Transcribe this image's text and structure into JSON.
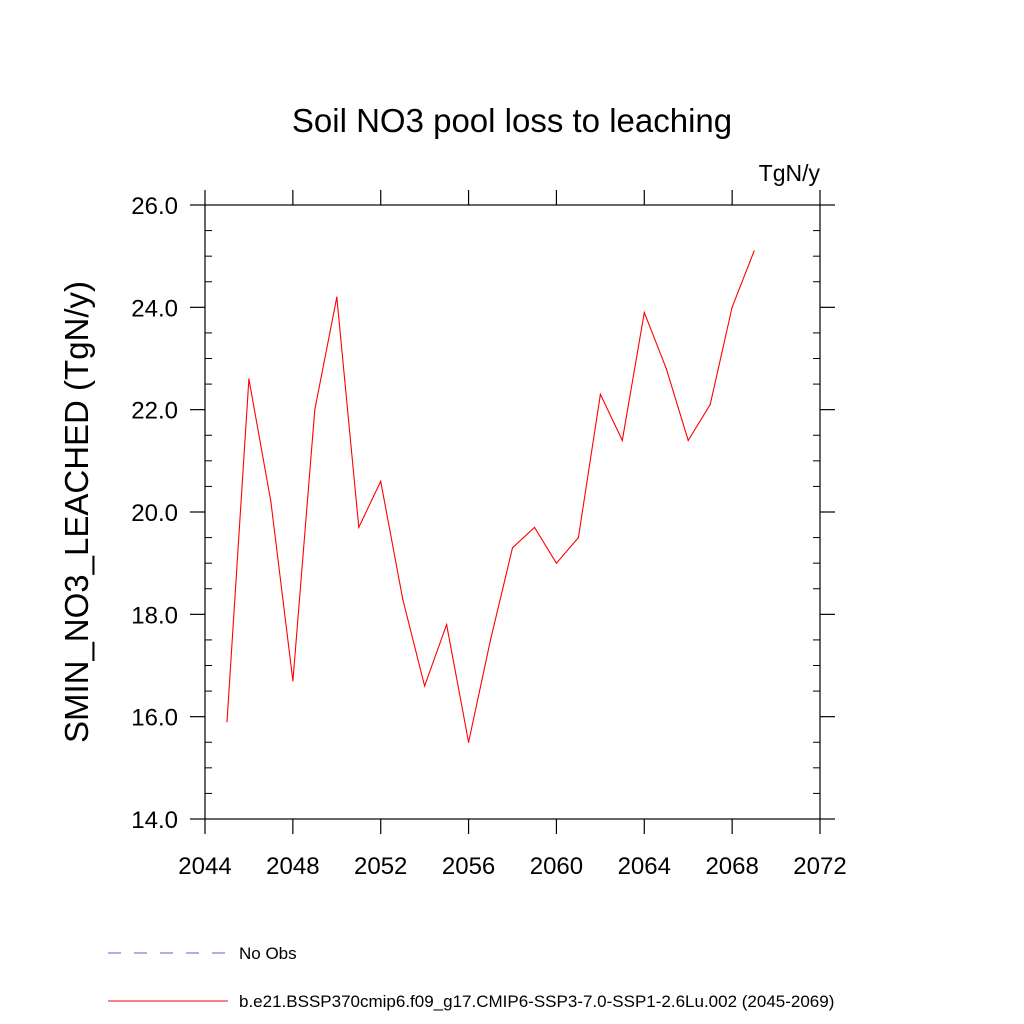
{
  "chart_data": {
    "type": "line",
    "title": "Soil NO3 pool loss to leaching",
    "units_label": "TgN/y",
    "ylabel": "SMIN_NO3_LEACHED  (TgN/y)",
    "xlabel": "",
    "xlim": [
      2044,
      2072
    ],
    "ylim": [
      14.0,
      26.0
    ],
    "x_ticks": [
      2044,
      2048,
      2052,
      2056,
      2060,
      2064,
      2068,
      2072
    ],
    "x_tick_labels": [
      "2044",
      "2048",
      "2052",
      "2056",
      "2060",
      "2064",
      "2068",
      "2072"
    ],
    "y_ticks": [
      14,
      16,
      18,
      20,
      22,
      24,
      26
    ],
    "y_tick_labels": [
      "14.0",
      "16.0",
      "18.0",
      "20.0",
      "22.0",
      "24.0",
      "26.0"
    ],
    "grid": false,
    "legend_position": "bottom",
    "series": [
      {
        "name": "b.e21.BSSP370cmip6.f09_g17.CMIP6-SSP3-7.0-SSP1-2.6Lu.002 (2045-2069)",
        "color": "#ff0000",
        "style": "solid",
        "x": [
          2045,
          2046,
          2047,
          2048,
          2049,
          2050,
          2051,
          2052,
          2053,
          2054,
          2055,
          2056,
          2057,
          2058,
          2059,
          2060,
          2061,
          2062,
          2063,
          2064,
          2065,
          2066,
          2067,
          2068,
          2069
        ],
        "values": [
          15.9,
          22.6,
          20.2,
          16.7,
          22.0,
          24.2,
          19.7,
          20.6,
          18.3,
          16.6,
          17.8,
          15.5,
          17.5,
          19.3,
          19.7,
          19.0,
          19.5,
          22.3,
          21.4,
          23.9,
          22.8,
          21.4,
          22.1,
          24.0,
          25.1
        ]
      },
      {
        "name": "No Obs",
        "color": "#6a5acd",
        "style": "dashed",
        "x": [],
        "values": []
      }
    ]
  }
}
